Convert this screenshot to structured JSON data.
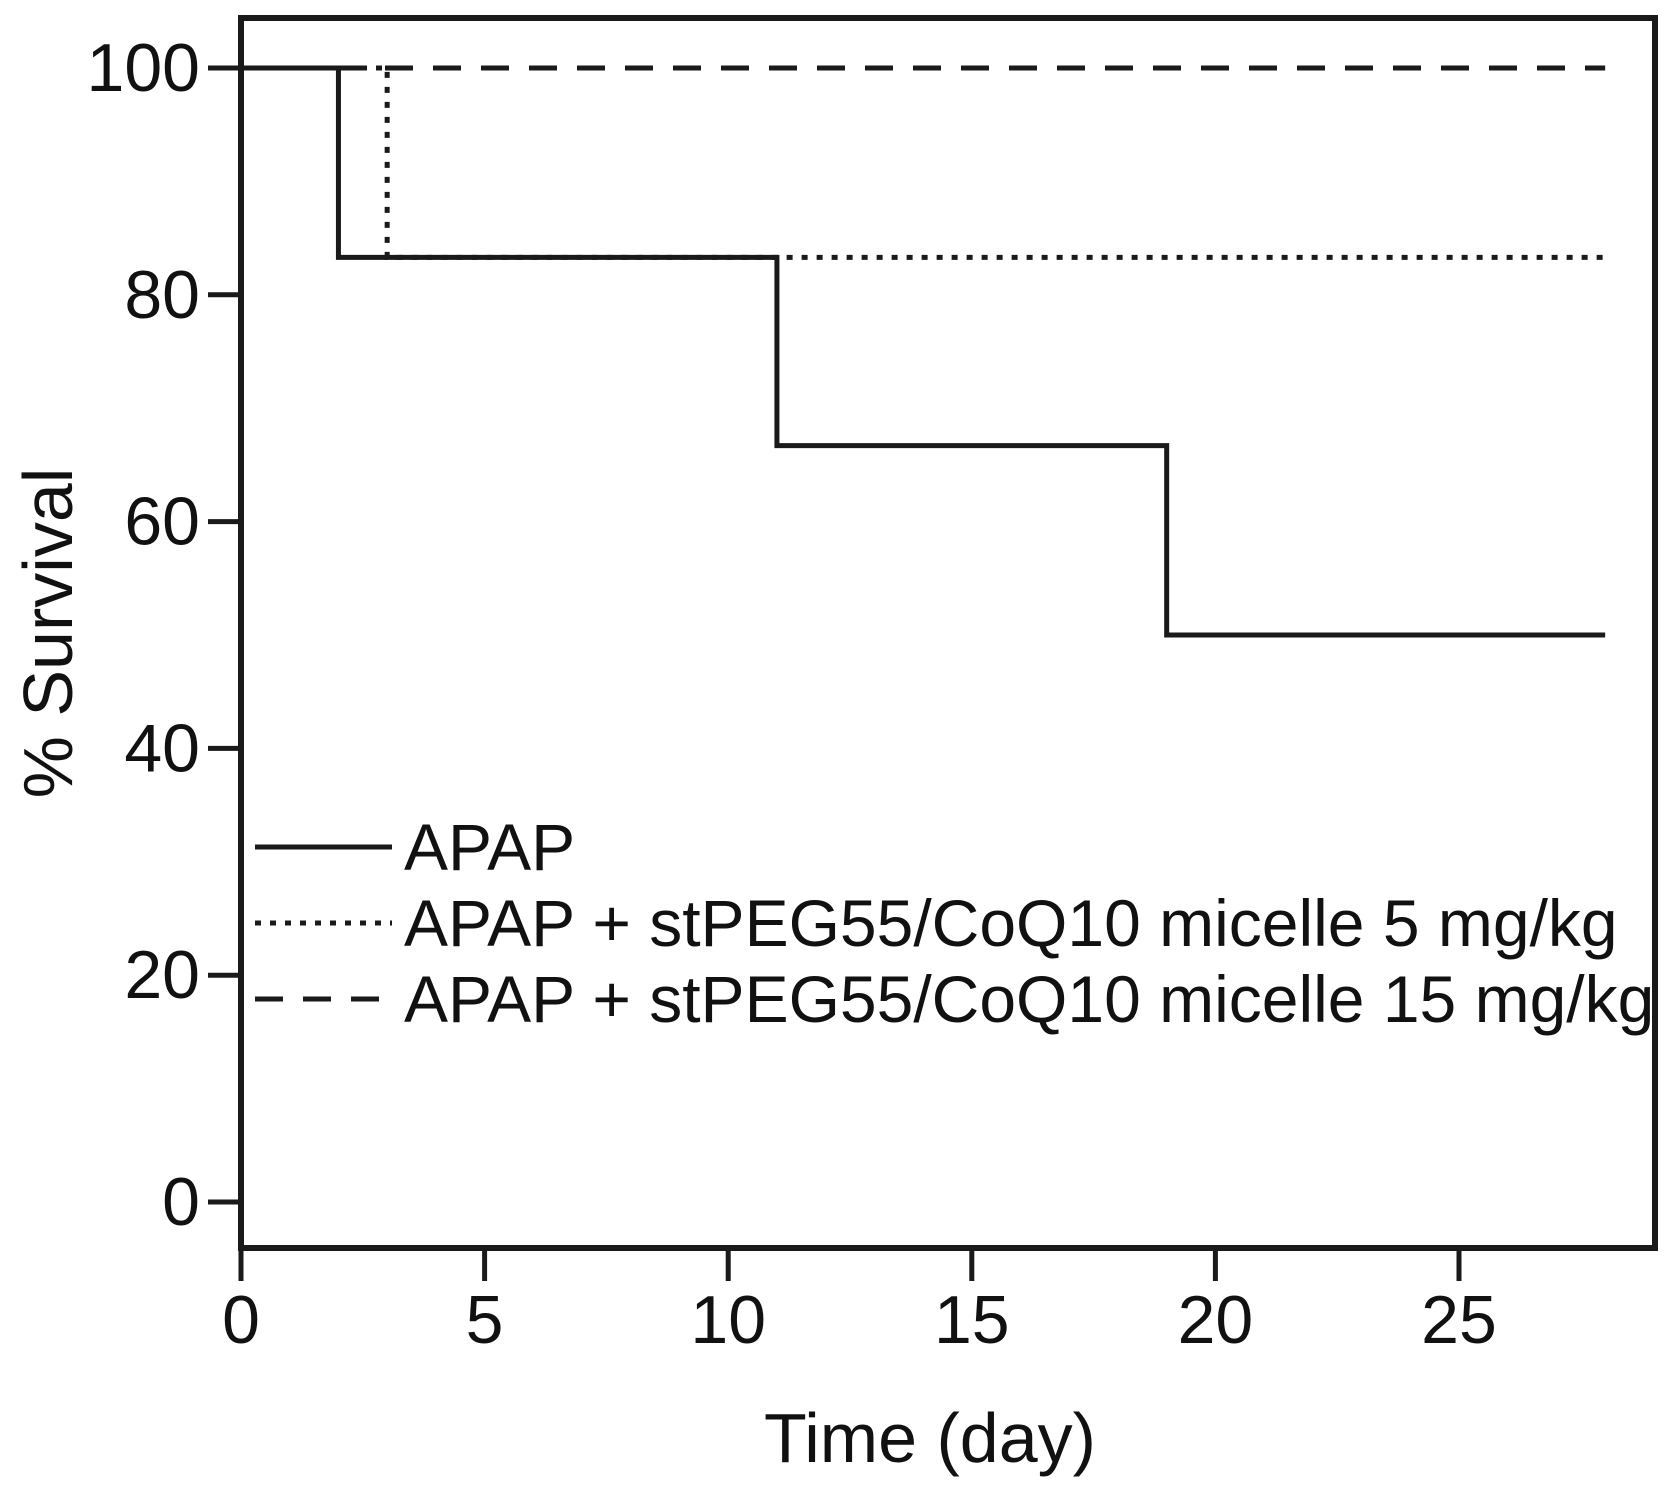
{
  "figure": {
    "background": "#ffffff",
    "ink_color": "#1a1a1a"
  },
  "chart_data": {
    "type": "line",
    "subtype": "kaplan-meier-step-survival",
    "title": "",
    "xlabel": "Time (day)",
    "ylabel": "% Survival",
    "xlim": [
      0,
      29
    ],
    "ylim": [
      -4,
      104.5
    ],
    "x_ticks": [
      0,
      5,
      10,
      15,
      20,
      25
    ],
    "y_ticks": [
      100,
      80,
      60,
      40,
      20,
      0
    ],
    "grid": false,
    "framed": true,
    "legend": {
      "position": "inside-lower-left",
      "entries": [
        {
          "label": "APAP",
          "line_style": "solid"
        },
        {
          "label": "APAP + stPEG55/CoQ10 micelle 5 mg/kg",
          "line_style": "dotted"
        },
        {
          "label": "APAP + stPEG55/CoQ10 micelle 15 mg/kg",
          "line_style": "dashed"
        }
      ]
    },
    "series": [
      {
        "name": "APAP",
        "line_style": "solid",
        "color": "#1a1a1a",
        "points": [
          [
            0,
            100
          ],
          [
            2,
            100
          ],
          [
            2,
            83.3
          ],
          [
            11,
            83.3
          ],
          [
            11,
            66.7
          ],
          [
            19,
            66.7
          ],
          [
            19,
            50
          ],
          [
            28,
            50
          ]
        ]
      },
      {
        "name": "APAP + stPEG55/CoQ10 micelle 5 mg/kg",
        "line_style": "dotted",
        "color": "#1a1a1a",
        "points": [
          [
            0,
            100
          ],
          [
            3,
            100
          ],
          [
            3,
            83.3
          ],
          [
            28,
            83.3
          ]
        ]
      },
      {
        "name": "APAP + stPEG55/CoQ10 micelle 15 mg/kg",
        "line_style": "dashed",
        "color": "#1a1a1a",
        "points": [
          [
            0,
            100
          ],
          [
            28,
            100
          ]
        ]
      }
    ]
  }
}
